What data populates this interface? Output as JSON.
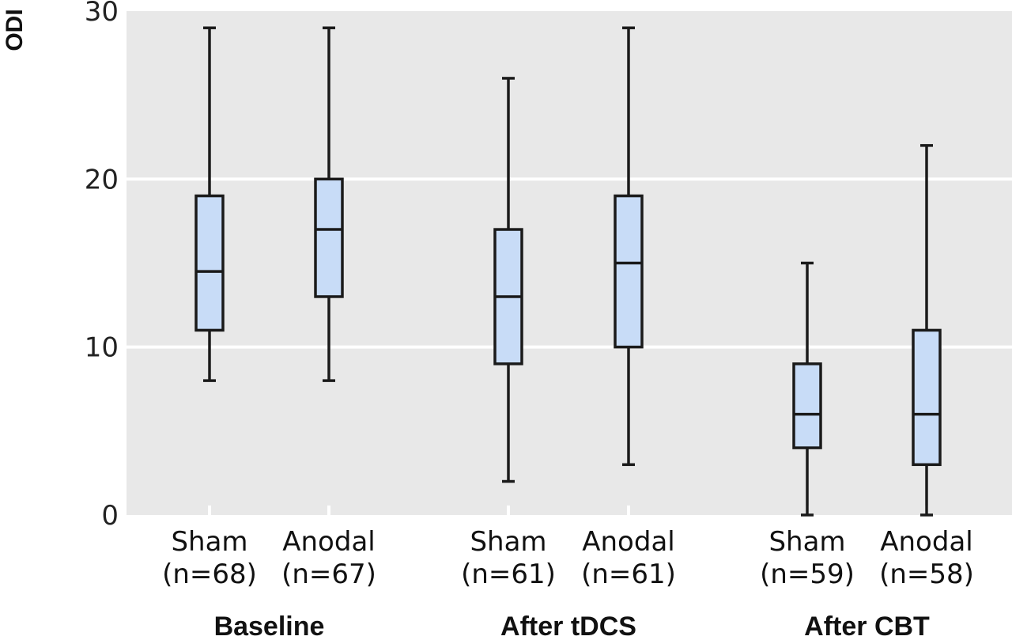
{
  "chart_data": {
    "type": "box",
    "ylabel": "ODI",
    "ylim": [
      0,
      30
    ],
    "yticks": [
      0,
      10,
      20,
      30
    ],
    "grid": true,
    "colors": {
      "plot_bg": "#e8e8e8",
      "box_fill": "#c8dcf7",
      "stroke": "#1a1a1a",
      "grid": "#ffffff"
    },
    "groups": [
      {
        "label": "Baseline",
        "boxes": [
          {
            "category": "Sham",
            "n_label": "(n=68)",
            "min": 8,
            "q1": 11,
            "median": 14.5,
            "q3": 19,
            "max": 29
          },
          {
            "category": "Anodal",
            "n_label": "(n=67)",
            "min": 8,
            "q1": 13,
            "median": 17,
            "q3": 20,
            "max": 29
          }
        ]
      },
      {
        "label": "After tDCS",
        "boxes": [
          {
            "category": "Sham",
            "n_label": "(n=61)",
            "min": 2,
            "q1": 9,
            "median": 13,
            "q3": 17,
            "max": 26
          },
          {
            "category": "Anodal",
            "n_label": "(n=61)",
            "min": 3,
            "q1": 10,
            "median": 15,
            "q3": 19,
            "max": 29
          }
        ]
      },
      {
        "label": "After CBT",
        "boxes": [
          {
            "category": "Sham",
            "n_label": "(n=59)",
            "min": 0,
            "q1": 4,
            "median": 6,
            "q3": 9,
            "max": 15
          },
          {
            "category": "Anodal",
            "n_label": "(n=58)",
            "min": 0,
            "q1": 3,
            "median": 6,
            "q3": 11,
            "max": 22
          }
        ]
      }
    ]
  }
}
